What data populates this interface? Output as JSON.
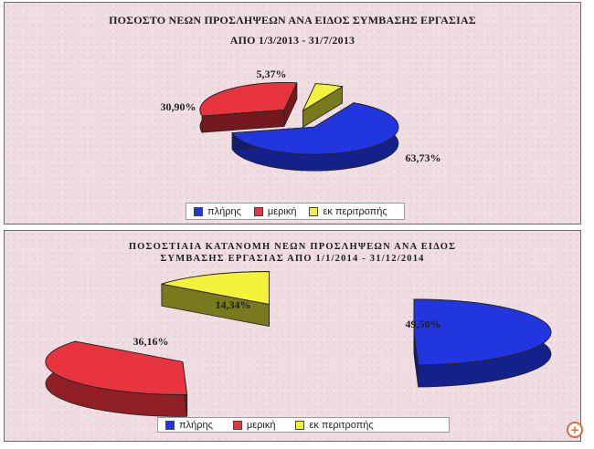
{
  "chart_data": [
    {
      "type": "pie",
      "title": "ΠΟΣΟΣΤΟ ΝΕΩΝ ΠΡΟΣΛΗΨΕΩΝ ΑΝΑ ΕΙΔΟΣ ΣΥΜΒΑΣΗΣ ΕΡΓΑΣΙΑΣ",
      "subtitle": "ΑΠΟ 1/3/2013 - 31/7/2013",
      "categories": [
        "πλήρης",
        "μερική",
        "εκ περιτροπής"
      ],
      "values": [
        63.73,
        30.9,
        5.37
      ],
      "data_labels": [
        "63,73%",
        "30,90%",
        "5,37%"
      ],
      "colors": [
        "#2236e0",
        "#e8343e",
        "#f2f23a"
      ],
      "legend_position": "bottom"
    },
    {
      "type": "pie",
      "title": "ΠΟΣΟΣΤΙΑΙΑ ΚΑΤΑΝΟΜΗ ΝΕΩΝ ΠΡΟΣΛΗΨΕΩΝ ΑΝΑ ΕΙΔΟΣ",
      "subtitle": "ΣΥΜΒΑΣΗΣ ΕΡΓΑΣΙΑΣ ΑΠΟ 1/1/2014 - 31/12/2014",
      "categories": [
        "πλήρης",
        "μερική",
        "εκ περιτροπής"
      ],
      "values": [
        49.5,
        36.16,
        14.34
      ],
      "data_labels": [
        "49,50%",
        "36,16%",
        "14,34%"
      ],
      "colors": [
        "#2236e0",
        "#e8343e",
        "#f2f23a"
      ],
      "legend_position": "bottom"
    }
  ],
  "icons": {
    "zoom": "zoom-plus-icon"
  }
}
